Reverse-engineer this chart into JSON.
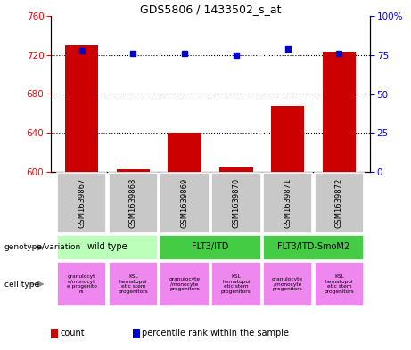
{
  "title": "GDS5806 / 1433502_s_at",
  "samples": [
    "GSM1639867",
    "GSM1639868",
    "GSM1639869",
    "GSM1639870",
    "GSM1639871",
    "GSM1639872"
  ],
  "count_values": [
    730,
    603,
    640,
    605,
    668,
    723
  ],
  "percentile_values": [
    78,
    76,
    76,
    75,
    79,
    76
  ],
  "ylim_left": [
    600,
    760
  ],
  "ylim_right": [
    0,
    100
  ],
  "yticks_left": [
    600,
    640,
    680,
    720,
    760
  ],
  "yticks_right": [
    0,
    25,
    50,
    75,
    100
  ],
  "grid_values": [
    720,
    680,
    640
  ],
  "bar_color": "#cc0000",
  "dot_color": "#0000cc",
  "sample_bg_color": "#c8c8c8",
  "geno_colors": [
    "#bbffbb",
    "#44cc44",
    "#44cc44"
  ],
  "geno_labels": [
    "wild type",
    "FLT3/ITD",
    "FLT3/ITD-SmoM2"
  ],
  "geno_starts": [
    0,
    2,
    4
  ],
  "geno_ends": [
    2,
    4,
    6
  ],
  "cell_bg_color": "#ee88ee",
  "cell_labels": [
    "granulocyt\ne/monocyt\ne progenito\nrs",
    "KSL\nhematopoi\netic stem\nprogenitors",
    "granulocyte\n/monocyte\nprogenitors",
    "KSL\nhematopoi\netic stem\nprogenitors",
    "granulocyte\n/monocyte\nprogenitors",
    "KSL\nhematopoi\netic stem\nprogenitors"
  ],
  "legend_count_label": "count",
  "legend_percentile_label": "percentile rank within the sample"
}
